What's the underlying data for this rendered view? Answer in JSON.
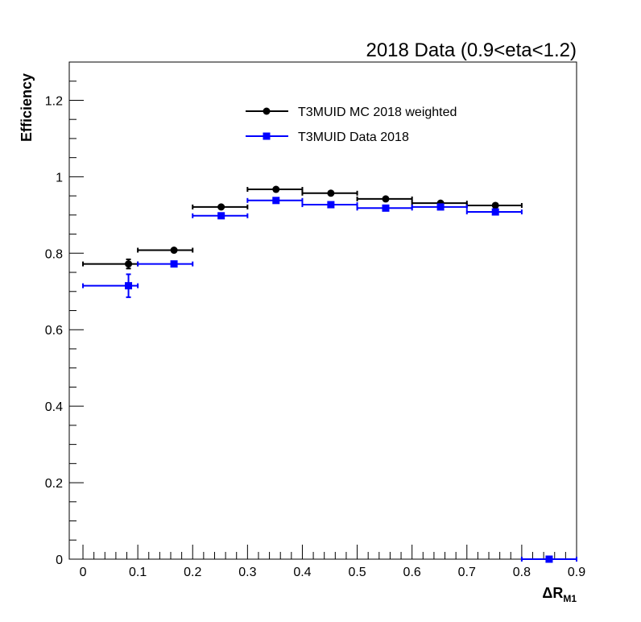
{
  "chart_data": {
    "type": "scatter",
    "title": "2018 Data (0.9<eta<1.2)",
    "xlabel_main": "ΔR",
    "xlabel_sub": "M1",
    "ylabel": "Efficiency",
    "xlim": [
      -0.025,
      0.9
    ],
    "ylim": [
      0,
      1.3
    ],
    "x_ticks": [
      0,
      0.1,
      0.2,
      0.3,
      0.4,
      0.5,
      0.6,
      0.7,
      0.8,
      0.9
    ],
    "x_tick_labels": [
      "0",
      "0.1",
      "0.2",
      "0.3",
      "0.4",
      "0.5",
      "0.6",
      "0.7",
      "0.8",
      "0.9"
    ],
    "y_ticks": [
      0,
      0.2,
      0.4,
      0.6,
      0.8,
      1.0,
      1.2
    ],
    "y_tick_labels": [
      "0",
      "0.2",
      "0.4",
      "0.6",
      "0.8",
      "1",
      "1.2"
    ],
    "series": [
      {
        "name": "T3MUID MC 2018 weighted",
        "color": "#000000",
        "marker": "circle",
        "points": [
          {
            "x": 0.083,
            "xlo": 0.0,
            "xhi": 0.1,
            "y": 0.772,
            "yerr": 0.012
          },
          {
            "x": 0.166,
            "xlo": 0.1,
            "xhi": 0.2,
            "y": 0.808,
            "yerr": 0.004
          },
          {
            "x": 0.252,
            "xlo": 0.2,
            "xhi": 0.3,
            "y": 0.921,
            "yerr": 0.003
          },
          {
            "x": 0.352,
            "xlo": 0.3,
            "xhi": 0.4,
            "y": 0.967,
            "yerr": 0.003
          },
          {
            "x": 0.452,
            "xlo": 0.4,
            "xhi": 0.5,
            "y": 0.957,
            "yerr": 0.003
          },
          {
            "x": 0.552,
            "xlo": 0.5,
            "xhi": 0.6,
            "y": 0.942,
            "yerr": 0.003
          },
          {
            "x": 0.652,
            "xlo": 0.6,
            "xhi": 0.7,
            "y": 0.931,
            "yerr": 0.003
          },
          {
            "x": 0.752,
            "xlo": 0.7,
            "xhi": 0.8,
            "y": 0.925,
            "yerr": 0.003
          }
        ]
      },
      {
        "name": "T3MUID Data 2018",
        "color": "#0000ff",
        "marker": "square",
        "points": [
          {
            "x": 0.083,
            "xlo": 0.0,
            "xhi": 0.1,
            "y": 0.715,
            "yerr": 0.03
          },
          {
            "x": 0.166,
            "xlo": 0.1,
            "xhi": 0.2,
            "y": 0.772,
            "yerr": 0.005
          },
          {
            "x": 0.252,
            "xlo": 0.2,
            "xhi": 0.3,
            "y": 0.898,
            "yerr": 0.004
          },
          {
            "x": 0.352,
            "xlo": 0.3,
            "xhi": 0.4,
            "y": 0.938,
            "yerr": 0.004
          },
          {
            "x": 0.452,
            "xlo": 0.4,
            "xhi": 0.5,
            "y": 0.927,
            "yerr": 0.004
          },
          {
            "x": 0.552,
            "xlo": 0.5,
            "xhi": 0.6,
            "y": 0.918,
            "yerr": 0.004
          },
          {
            "x": 0.652,
            "xlo": 0.6,
            "xhi": 0.7,
            "y": 0.921,
            "yerr": 0.004
          },
          {
            "x": 0.752,
            "xlo": 0.7,
            "xhi": 0.8,
            "y": 0.908,
            "yerr": 0.004
          },
          {
            "x": 0.85,
            "xlo": 0.8,
            "xhi": 0.9,
            "y": 0.0,
            "yerr": 0.0
          }
        ]
      }
    ],
    "legend_position": "top-center",
    "grid": false
  }
}
